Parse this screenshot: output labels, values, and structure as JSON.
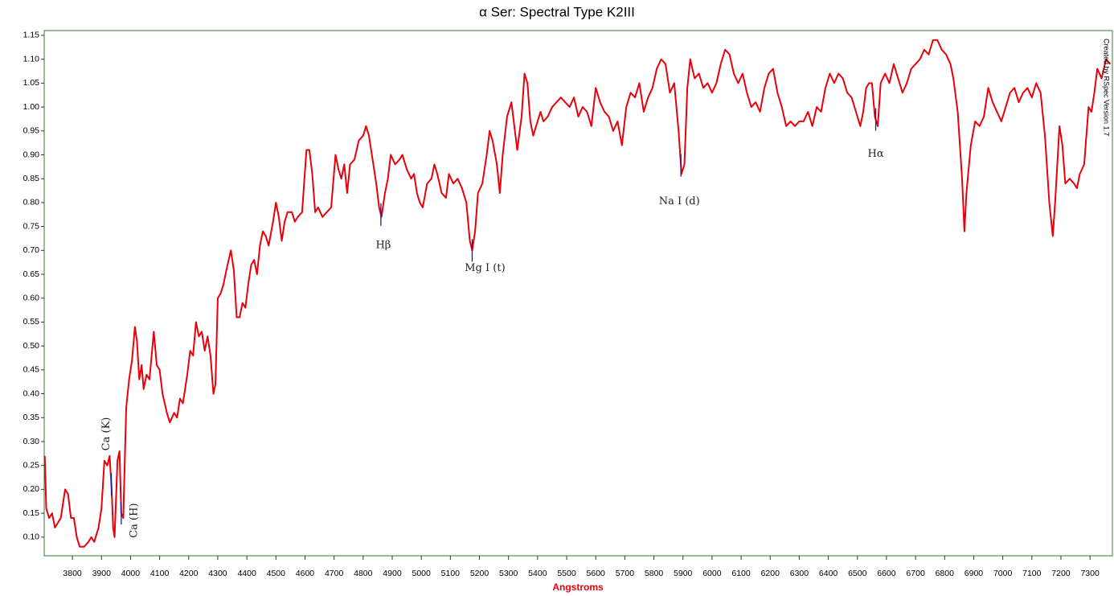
{
  "chart_data": {
    "type": "line",
    "title": "α Ser: Spectral Type K2III",
    "xlabel": "Angstroms",
    "credit": "Created by RSpec Version 1.7",
    "xlim": [
      3703,
      7377
    ],
    "ylim": [
      0.061,
      1.16
    ],
    "xticks": [
      3800,
      3900,
      4000,
      4100,
      4200,
      4300,
      4400,
      4500,
      4600,
      4700,
      4800,
      4900,
      5000,
      5100,
      5200,
      5300,
      5400,
      5500,
      5600,
      5700,
      5800,
      5900,
      6000,
      6100,
      6200,
      6300,
      6400,
      6500,
      6600,
      6700,
      6800,
      6900,
      7000,
      7100,
      7200,
      7300
    ],
    "yticks": [
      {
        "value": 0.1,
        "label": "0.10"
      },
      0.15,
      {
        "value": 0.2,
        "label": "0.20"
      },
      0.25,
      {
        "value": 0.3,
        "label": "0.30"
      },
      0.35,
      {
        "value": 0.4,
        "label": "0.40"
      },
      0.45,
      {
        "value": 0.5,
        "label": "0.50"
      },
      0.55,
      {
        "value": 0.6,
        "label": "0.60"
      },
      0.65,
      {
        "value": 0.7,
        "label": "0.70"
      },
      0.75,
      {
        "value": 0.8,
        "label": "0.80"
      },
      0.85,
      {
        "value": 0.9,
        "label": "0.90"
      },
      0.95,
      {
        "value": 1,
        "label": "1.00"
      },
      1.05,
      {
        "value": 1.1,
        "label": "1.10"
      },
      1.15
    ],
    "x": [
      3705,
      3710,
      3720,
      3730,
      3740,
      3750,
      3760,
      3770,
      3775,
      3785,
      3795,
      3805,
      3815,
      3825,
      3840,
      3855,
      3865,
      3875,
      3890,
      3900,
      3910,
      3920,
      3928,
      3935,
      3940,
      3945,
      3955,
      3962,
      3968,
      3975,
      3985,
      3995,
      4005,
      4015,
      4022,
      4030,
      4038,
      4045,
      4055,
      4065,
      4080,
      4090,
      4100,
      4110,
      4125,
      4135,
      4150,
      4160,
      4170,
      4180,
      4195,
      4205,
      4215,
      4225,
      4235,
      4245,
      4255,
      4265,
      4275,
      4285,
      4292,
      4300,
      4310,
      4320,
      4330,
      4345,
      4355,
      4365,
      4375,
      4385,
      4395,
      4405,
      4415,
      4425,
      4435,
      4445,
      4455,
      4465,
      4475,
      4490,
      4500,
      4510,
      4520,
      4530,
      4540,
      4555,
      4565,
      4575,
      4590,
      4605,
      4615,
      4625,
      4635,
      4645,
      4660,
      4675,
      4690,
      4705,
      4715,
      4725,
      4735,
      4745,
      4755,
      4770,
      4785,
      4800,
      4810,
      4820,
      4830,
      4845,
      4855,
      4863,
      4875,
      4885,
      4895,
      4910,
      4925,
      4935,
      4950,
      4965,
      4975,
      4985,
      4995,
      5005,
      5020,
      5035,
      5045,
      5055,
      5070,
      5085,
      5095,
      5110,
      5125,
      5140,
      5155,
      5167,
      5175,
      5185,
      5195,
      5210,
      5225,
      5235,
      5245,
      5260,
      5270,
      5280,
      5295,
      5310,
      5320,
      5330,
      5345,
      5355,
      5365,
      5375,
      5385,
      5395,
      5410,
      5420,
      5435,
      5450,
      5465,
      5480,
      5495,
      5510,
      5525,
      5540,
      5555,
      5570,
      5585,
      5600,
      5615,
      5630,
      5645,
      5660,
      5675,
      5690,
      5705,
      5720,
      5735,
      5750,
      5765,
      5780,
      5795,
      5810,
      5825,
      5840,
      5855,
      5870,
      5885,
      5895,
      5905,
      5915,
      5925,
      5940,
      5955,
      5970,
      5985,
      6000,
      6015,
      6030,
      6045,
      6060,
      6075,
      6090,
      6105,
      6120,
      6135,
      6150,
      6165,
      6180,
      6195,
      6210,
      6225,
      6240,
      6255,
      6270,
      6285,
      6300,
      6315,
      6330,
      6345,
      6360,
      6375,
      6390,
      6405,
      6420,
      6435,
      6450,
      6465,
      6480,
      6495,
      6510,
      6520,
      6530,
      6540,
      6550,
      6560,
      6570,
      6580,
      6595,
      6610,
      6625,
      6640,
      6655,
      6670,
      6685,
      6700,
      6715,
      6730,
      6745,
      6760,
      6775,
      6790,
      6805,
      6820,
      6830,
      6845,
      6860,
      6868,
      6875,
      6890,
      6905,
      6920,
      6935,
      6950,
      6965,
      6980,
      6995,
      7010,
      7025,
      7040,
      7055,
      7070,
      7085,
      7100,
      7115,
      7130,
      7145,
      7160,
      7172,
      7180,
      7195,
      7205,
      7215,
      7230,
      7245,
      7255,
      7265,
      7280,
      7295,
      7305,
      7315,
      7325,
      7340,
      7355,
      7370
    ],
    "series": [
      {
        "color": "#e8000b",
        "values": [
          0.27,
          0.16,
          0.14,
          0.15,
          0.12,
          0.13,
          0.14,
          0.18,
          0.2,
          0.19,
          0.14,
          0.14,
          0.1,
          0.08,
          0.08,
          0.09,
          0.1,
          0.09,
          0.12,
          0.16,
          0.26,
          0.25,
          0.27,
          0.2,
          0.12,
          0.1,
          0.26,
          0.28,
          0.15,
          0.14,
          0.37,
          0.43,
          0.47,
          0.54,
          0.51,
          0.43,
          0.46,
          0.41,
          0.44,
          0.43,
          0.53,
          0.46,
          0.45,
          0.4,
          0.36,
          0.34,
          0.36,
          0.35,
          0.39,
          0.38,
          0.44,
          0.49,
          0.48,
          0.55,
          0.52,
          0.53,
          0.49,
          0.52,
          0.48,
          0.4,
          0.42,
          0.6,
          0.61,
          0.63,
          0.66,
          0.7,
          0.66,
          0.56,
          0.56,
          0.59,
          0.58,
          0.63,
          0.67,
          0.68,
          0.65,
          0.71,
          0.74,
          0.73,
          0.71,
          0.76,
          0.8,
          0.77,
          0.72,
          0.76,
          0.78,
          0.78,
          0.76,
          0.77,
          0.78,
          0.91,
          0.91,
          0.86,
          0.78,
          0.79,
          0.77,
          0.78,
          0.79,
          0.9,
          0.87,
          0.85,
          0.88,
          0.82,
          0.88,
          0.89,
          0.93,
          0.94,
          0.96,
          0.94,
          0.9,
          0.84,
          0.79,
          0.77,
          0.82,
          0.85,
          0.9,
          0.88,
          0.89,
          0.9,
          0.87,
          0.85,
          0.86,
          0.82,
          0.8,
          0.79,
          0.84,
          0.85,
          0.88,
          0.86,
          0.82,
          0.81,
          0.86,
          0.84,
          0.85,
          0.83,
          0.8,
          0.72,
          0.7,
          0.74,
          0.82,
          0.84,
          0.9,
          0.95,
          0.93,
          0.88,
          0.82,
          0.9,
          0.98,
          1.01,
          0.96,
          0.91,
          0.98,
          1.07,
          1.05,
          0.97,
          0.94,
          0.96,
          0.99,
          0.97,
          0.98,
          1.0,
          1.01,
          1.02,
          1.01,
          1.0,
          1.02,
          0.98,
          1.0,
          0.99,
          0.96,
          1.04,
          1.01,
          0.99,
          0.98,
          0.95,
          0.97,
          0.92,
          1.0,
          1.03,
          1.02,
          1.05,
          0.99,
          1.02,
          1.04,
          1.08,
          1.1,
          1.09,
          1.03,
          1.05,
          0.95,
          0.86,
          0.88,
          1.04,
          1.1,
          1.06,
          1.07,
          1.04,
          1.05,
          1.03,
          1.05,
          1.09,
          1.12,
          1.11,
          1.07,
          1.05,
          1.07,
          1.03,
          1.0,
          1.01,
          0.99,
          1.04,
          1.07,
          1.08,
          1.03,
          1.0,
          0.96,
          0.97,
          0.96,
          0.97,
          0.97,
          0.99,
          0.96,
          1.0,
          0.99,
          1.04,
          1.07,
          1.05,
          1.07,
          1.06,
          1.03,
          1.02,
          0.99,
          0.96,
          0.99,
          1.04,
          1.05,
          1.05,
          0.98,
          0.96,
          1.05,
          1.07,
          1.05,
          1.09,
          1.06,
          1.03,
          1.05,
          1.08,
          1.09,
          1.1,
          1.12,
          1.11,
          1.14,
          1.14,
          1.12,
          1.11,
          1.09,
          1.06,
          0.99,
          0.85,
          0.74,
          0.82,
          0.92,
          0.97,
          0.96,
          0.98,
          1.04,
          1.01,
          0.99,
          0.97,
          1.0,
          1.03,
          1.04,
          1.01,
          1.03,
          1.04,
          1.02,
          1.05,
          1.03,
          0.94,
          0.8,
          0.73,
          0.8,
          0.96,
          0.92,
          0.84,
          0.85,
          0.84,
          0.83,
          0.86,
          0.88,
          1.0,
          0.99,
          1.03,
          1.08,
          1.06,
          1.1,
          1.09
        ]
      }
    ],
    "annotations": [
      {
        "text": "Ca (K)",
        "x": 3934
      },
      {
        "text": "Ca (H)",
        "x": 3968
      },
      {
        "text": "Hβ",
        "x": 4861
      },
      {
        "text": "Mg I (t)",
        "x": 5175
      },
      {
        "text": "Na I (d)",
        "x": 5893
      },
      {
        "text": "Hα",
        "x": 6563
      }
    ],
    "annotation_color": "#1a1aa0",
    "frame_color": "#2e7d32"
  }
}
